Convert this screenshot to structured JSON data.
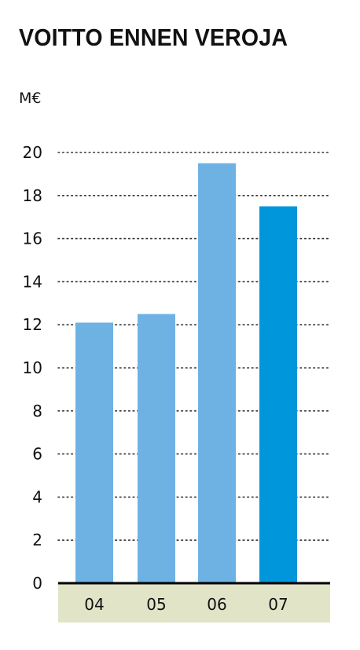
{
  "title": "VOITTO ENNEN VEROJA",
  "unit": "M€",
  "colors": {
    "bar": "#6eb2e4",
    "highlight": "#0096dc",
    "axis_band": "#e2e4c8",
    "grid": "#333333",
    "text": "#111111"
  },
  "chart_data": {
    "type": "bar",
    "title": "VOITTO ENNEN VEROJA",
    "ylabel": "M€",
    "xlabel": "",
    "categories": [
      "04",
      "05",
      "06",
      "07"
    ],
    "values": [
      12.1,
      12.5,
      19.5,
      17.5
    ],
    "highlight_index": 3,
    "ylim": [
      0,
      20
    ],
    "yticks": [
      "0",
      "2",
      "4",
      "6",
      "8",
      "10",
      "12",
      "14",
      "16",
      "18",
      "20"
    ],
    "grid": true,
    "grid_style": "dotted"
  }
}
